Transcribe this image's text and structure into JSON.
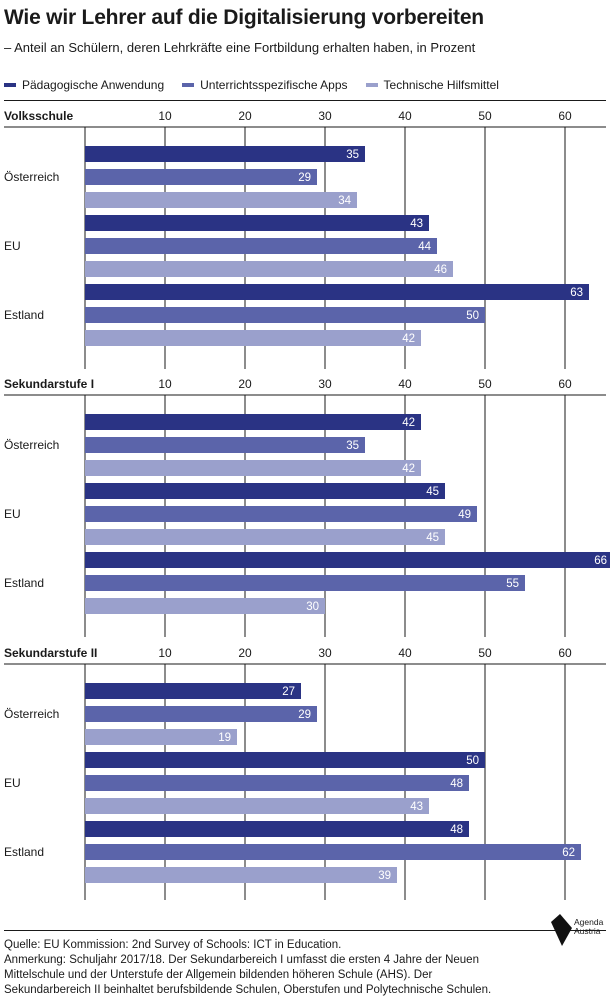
{
  "title": "Wie wir Lehrer auf die Digitalisierung vorbereiten",
  "subtitle": "– Anteil an Schülern, deren Lehrkräfte eine Fortbildung erhalten haben, in Prozent",
  "colors": {
    "series1": "#2a3384",
    "series2": "#5b64aa",
    "series3": "#9aa0cc",
    "axis": "#1a1a1a"
  },
  "chart_data": {
    "type": "bar",
    "orientation": "horizontal",
    "legend_position": "top-left",
    "grid": true,
    "xlim": [
      0,
      66
    ],
    "ticks": [
      10,
      20,
      30,
      40,
      50,
      60
    ],
    "series_names": [
      "Pädagogische Anwendung",
      "Unterrichtsspezifische Apps",
      "Technische Hilfsmittel"
    ],
    "panels": [
      {
        "title": "Volksschule",
        "categories": [
          "Österreich",
          "EU",
          "Estland"
        ],
        "series": [
          {
            "name": "Pädagogische Anwendung",
            "values": [
              35,
              43,
              63
            ]
          },
          {
            "name": "Unterrichtsspezifische Apps",
            "values": [
              29,
              44,
              50
            ]
          },
          {
            "name": "Technische Hilfsmittel",
            "values": [
              34,
              46,
              42
            ]
          }
        ]
      },
      {
        "title": "Sekundarstufe I",
        "categories": [
          "Österreich",
          "EU",
          "Estland"
        ],
        "series": [
          {
            "name": "Pädagogische Anwendung",
            "values": [
              42,
              45,
              66
            ]
          },
          {
            "name": "Unterrichtsspezifische Apps",
            "values": [
              35,
              49,
              55
            ]
          },
          {
            "name": "Technische Hilfsmittel",
            "values": [
              42,
              45,
              30
            ]
          }
        ]
      },
      {
        "title": "Sekundarstufe II",
        "categories": [
          "Österreich",
          "EU",
          "Estland"
        ],
        "series": [
          {
            "name": "Pädagogische Anwendung",
            "values": [
              27,
              50,
              48
            ]
          },
          {
            "name": "Unterrichtsspezifische Apps",
            "values": [
              29,
              48,
              62
            ]
          },
          {
            "name": "Technische Hilfsmittel",
            "values": [
              19,
              43,
              39
            ]
          }
        ]
      }
    ]
  },
  "footer": {
    "source": "Quelle: EU Kommission: 2nd Survey of Schools: ICT in Education.",
    "note_line1": "Anmerkung: Schuljahr 2017/18. Der Sekundarbereich I umfasst die ersten 4 Jahre der Neuen",
    "note_line2": "Mittelschule und der Unterstufe der Allgemein bildenden höheren Schule (AHS). Der",
    "note_line3": "Sekundarbereich II beinhaltet berufsbildende Schulen, Oberstufen und Polytechnische Schulen."
  },
  "logo": {
    "line1": "Agenda",
    "line2": "Austria"
  }
}
